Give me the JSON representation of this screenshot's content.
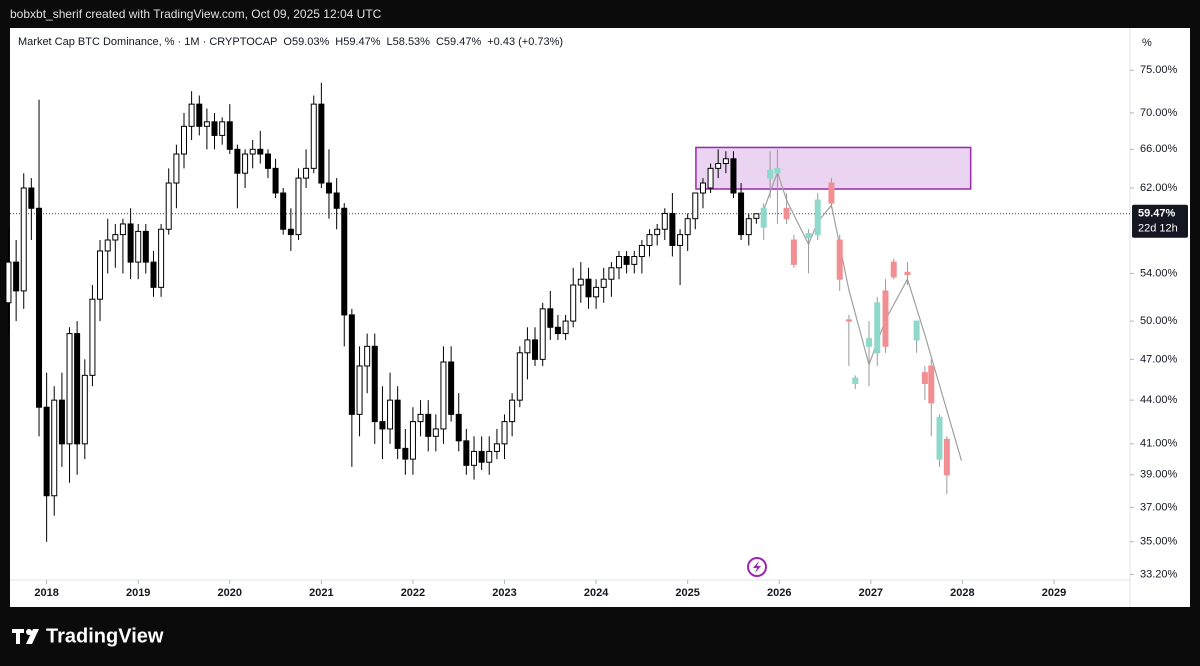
{
  "header": "bobxbt_sherif created with TradingView.com, Oct 09, 2025 12:04 UTC",
  "footer": "TradingView",
  "chart_data": {
    "type": "candlestick",
    "title": "Market Cap BTC Dominance, % · 1M · CRYPTOCAP",
    "last_labels": [
      "O59.03%",
      "H59.47%",
      "L58.53%",
      "C59.47%",
      "+0.43 (+0.73%)"
    ],
    "unit_label": "%",
    "log_scale": true,
    "grid": false,
    "xlim": [
      2017.6,
      2029.83
    ],
    "xticks": [
      2018,
      2019,
      2020,
      2021,
      2022,
      2023,
      2024,
      2025,
      2026,
      2027,
      2028,
      2029
    ],
    "ylim": [
      32.9,
      80.3
    ],
    "yticks": [
      {
        "value": 75,
        "label": "75.00%"
      },
      {
        "value": 70,
        "label": "70.00%"
      },
      {
        "value": 66,
        "label": "66.00%"
      },
      {
        "value": 62,
        "label": "62.00%"
      },
      {
        "value": 54,
        "label": "54.00%"
      },
      {
        "value": 50,
        "label": "50.00%"
      },
      {
        "value": 47,
        "label": "47.00%"
      },
      {
        "value": 44,
        "label": "44.00%"
      },
      {
        "value": 41,
        "label": "41.00%"
      },
      {
        "value": 39,
        "label": "39.00%"
      },
      {
        "value": 37,
        "label": "37.00%"
      },
      {
        "value": 35,
        "label": "35.00%"
      },
      {
        "value": 33.2,
        "label": "33.20%"
      }
    ],
    "current": {
      "value": 59.47,
      "label": "59.47%",
      "countdown": "22d 12h"
    },
    "candles": {
      "up_color": "#ffffff",
      "down_color": "#000000",
      "border_color": "#000000",
      "x": [
        2017.583,
        2017.667,
        2017.75,
        2017.833,
        2017.917,
        2018,
        2018.083,
        2018.167,
        2018.25,
        2018.333,
        2018.417,
        2018.5,
        2018.583,
        2018.667,
        2018.75,
        2018.833,
        2018.917,
        2019,
        2019.083,
        2019.167,
        2019.25,
        2019.333,
        2019.417,
        2019.5,
        2019.583,
        2019.667,
        2019.75,
        2019.833,
        2019.917,
        2020,
        2020.083,
        2020.167,
        2020.25,
        2020.333,
        2020.417,
        2020.5,
        2020.583,
        2020.667,
        2020.75,
        2020.833,
        2020.917,
        2021,
        2021.083,
        2021.167,
        2021.25,
        2021.333,
        2021.417,
        2021.5,
        2021.583,
        2021.667,
        2021.75,
        2021.833,
        2021.917,
        2022,
        2022.083,
        2022.167,
        2022.25,
        2022.333,
        2022.417,
        2022.5,
        2022.583,
        2022.667,
        2022.75,
        2022.833,
        2022.917,
        2023,
        2023.083,
        2023.167,
        2023.25,
        2023.333,
        2023.417,
        2023.5,
        2023.583,
        2023.667,
        2023.75,
        2023.833,
        2023.917,
        2024,
        2024.083,
        2024.167,
        2024.25,
        2024.333,
        2024.417,
        2024.5,
        2024.583,
        2024.667,
        2024.75,
        2024.833,
        2024.917,
        2025,
        2025.083,
        2025.167,
        2025.25,
        2025.333,
        2025.417,
        2025.5,
        2025.583,
        2025.667,
        2025.75
      ],
      "open": [
        51.5,
        55,
        52.5,
        62,
        60,
        43.5,
        37.7,
        44,
        41,
        49,
        41,
        45.8,
        51.8,
        56,
        57,
        57.5,
        58.5,
        55,
        57.8,
        55,
        52.8,
        58,
        62.5,
        65.5,
        68.5,
        71,
        68.5,
        69,
        67.5,
        69,
        66,
        63.5,
        65.5,
        66,
        65.5,
        64,
        61.5,
        58,
        57.5,
        63,
        64,
        71,
        62.5,
        61.5,
        60,
        50.5,
        43,
        46.5,
        48,
        42.5,
        42,
        44,
        40.7,
        40,
        42.5,
        43,
        41.5,
        42,
        46.8,
        43,
        41.2,
        39.6,
        40.5,
        39.8,
        40.5,
        41,
        42.5,
        44,
        47.5,
        48.5,
        47,
        51,
        49.5,
        49,
        50,
        53,
        53.5,
        52,
        52.8,
        53.5,
        54.5,
        55.5,
        54.8,
        55.5,
        56.5,
        57.5,
        58,
        59.5,
        56.5,
        57.5,
        59,
        61.5,
        62,
        64,
        64.5,
        65,
        61.5,
        57.5,
        59.03
      ],
      "high": [
        58,
        57,
        63.5,
        63,
        71.5,
        46,
        45,
        46,
        49.5,
        50,
        47,
        53,
        57,
        59,
        58.5,
        59,
        60,
        58.5,
        58.5,
        56,
        58.5,
        64,
        66.5,
        70,
        72.5,
        72,
        70.5,
        70,
        69.5,
        71,
        66.5,
        66,
        67,
        68,
        66,
        65,
        62,
        60,
        64,
        66,
        72,
        73.5,
        66,
        63,
        60.5,
        51,
        48,
        49,
        49,
        45,
        46,
        45,
        42,
        43.5,
        44,
        44,
        43,
        48,
        48,
        44.5,
        42,
        41.5,
        41.5,
        41.5,
        42,
        43,
        44.5,
        48,
        49.5,
        49.5,
        51.5,
        52.5,
        50.5,
        50.5,
        54.5,
        55,
        54.5,
        53.5,
        54.5,
        55,
        56,
        56,
        56,
        57,
        58,
        58.5,
        60,
        61.5,
        58,
        59.5,
        61.5,
        63,
        64.5,
        66,
        65.8,
        65.8,
        62.5,
        59.5,
        59.47
      ],
      "low": [
        49,
        50,
        51,
        57,
        41.5,
        35,
        36.5,
        39.5,
        38.5,
        39,
        40,
        45,
        50,
        54,
        54.5,
        54,
        53.5,
        53.5,
        54,
        52,
        52,
        57.5,
        60,
        64,
        67,
        67.5,
        66,
        66,
        66.5,
        65.5,
        60,
        62,
        64,
        64.5,
        63,
        61,
        57.5,
        56,
        57,
        62,
        63.5,
        62,
        59,
        58,
        48,
        39.5,
        41.5,
        44.5,
        41,
        40,
        41,
        40,
        39,
        39,
        41.5,
        40.5,
        40.5,
        41,
        42.5,
        40.5,
        39,
        38.7,
        39.3,
        39,
        40,
        40,
        41.5,
        43.5,
        45.5,
        46.5,
        46.5,
        48.5,
        48.5,
        48.5,
        49.5,
        51.5,
        51,
        51,
        51.5,
        52,
        53.5,
        54,
        54,
        54,
        55.5,
        56.5,
        57,
        55.5,
        53,
        56,
        58,
        60,
        61.5,
        63,
        63.5,
        61,
        57,
        56.5,
        58.53
      ],
      "close": [
        55,
        52.5,
        62,
        60,
        43.5,
        37.7,
        44,
        41,
        49,
        41,
        45.8,
        51.8,
        56,
        57,
        57.5,
        58.5,
        55,
        57.8,
        55,
        52.8,
        58,
        62.5,
        65.5,
        68.5,
        71,
        68.5,
        69,
        67.5,
        69,
        66,
        63.5,
        65.5,
        66,
        65.5,
        64,
        61.5,
        58,
        57.5,
        63,
        64,
        71,
        62.5,
        61.5,
        60,
        50.5,
        43,
        46.5,
        48,
        42.5,
        42,
        44,
        40.7,
        40,
        42.5,
        43,
        41.5,
        42,
        46.8,
        43,
        41.2,
        39.6,
        40.5,
        39.8,
        40.5,
        41,
        42.5,
        44,
        47.5,
        48.5,
        47,
        51,
        49.5,
        49,
        50,
        53,
        53.5,
        52,
        52.8,
        53.5,
        54.5,
        55.5,
        54.8,
        55.5,
        56.5,
        57.5,
        58,
        59.5,
        56.5,
        57.5,
        59,
        61.5,
        62.5,
        64,
        64.5,
        65,
        61.5,
        57.5,
        59,
        59.47
      ]
    },
    "projection": {
      "up_color": "#8fd8cc",
      "down_color": "#f28f93",
      "border_color": "#9a9a9a",
      "x": [
        2025.83,
        2025.9,
        2025.98,
        2026.08,
        2026.16,
        2026.32,
        2026.42,
        2026.57,
        2026.66,
        2026.76,
        2026.83,
        2026.98,
        2027.07,
        2027.16,
        2027.25,
        2027.4,
        2027.5,
        2027.59,
        2027.66,
        2027.75,
        2027.83
      ],
      "open": [
        58.2,
        63,
        63.5,
        60,
        57,
        57.2,
        57.5,
        62.5,
        57,
        50.1,
        45.2,
        48,
        47.5,
        52.5,
        55,
        54.1,
        48.5,
        46,
        46.5,
        40,
        41.3
      ],
      "high": [
        60.5,
        65.8,
        66,
        61.5,
        57.5,
        58,
        61.5,
        63,
        57.5,
        50.5,
        45.8,
        50,
        52,
        53.5,
        55.3,
        55,
        50,
        46.5,
        47,
        43,
        41.5
      ],
      "low": [
        57,
        61,
        58.5,
        58.5,
        54.5,
        54,
        57,
        60,
        52.5,
        46.5,
        44.8,
        45,
        46.5,
        47.5,
        53.5,
        53,
        47.5,
        44,
        41.5,
        39.5,
        37.8
      ],
      "close": [
        60,
        63.8,
        64,
        59,
        54.8,
        57.6,
        60.8,
        60.5,
        53.5,
        50,
        45.6,
        48.6,
        51.5,
        48,
        53.7,
        53.9,
        50,
        45.2,
        43.8,
        42.8,
        39
      ]
    },
    "projection_line": {
      "color": "#a0a0a0",
      "x": [
        2025.83,
        2025.98,
        2026.08,
        2026.32,
        2026.42,
        2026.57,
        2026.76,
        2026.98,
        2027.16,
        2027.4,
        2027.59,
        2027.99
      ],
      "y": [
        59.8,
        63.6,
        60.8,
        56.6,
        58.7,
        60.3,
        52.6,
        46.6,
        50.1,
        53.5,
        48.9,
        39.9
      ]
    },
    "zone": {
      "x": [
        2025.09,
        2028.09
      ],
      "y": [
        61.9,
        66.2
      ],
      "fill": "#e6c8ef",
      "stroke": "#9c27b0"
    }
  }
}
